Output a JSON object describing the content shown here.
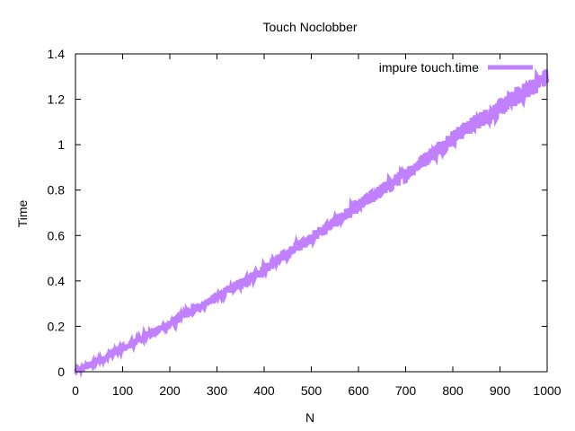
{
  "chart_data": {
    "type": "line",
    "title": "Touch Noclobber",
    "xlabel": "N",
    "ylabel": "Time",
    "xlim": [
      0,
      1000
    ],
    "ylim": [
      0,
      1.4
    ],
    "x_ticks": [
      0,
      100,
      200,
      300,
      400,
      500,
      600,
      700,
      800,
      900,
      1000
    ],
    "y_ticks": [
      0,
      0.2,
      0.4,
      0.6,
      0.8,
      1,
      1.2,
      1.4
    ],
    "x_tick_labels": [
      "0",
      "100",
      "200",
      "300",
      "400",
      "500",
      "600",
      "700",
      "800",
      "900",
      "1000"
    ],
    "y_tick_labels": [
      "0",
      "0.2",
      "0.4",
      "0.6",
      "0.8",
      "1",
      "1.2",
      "1.4"
    ],
    "grid": false,
    "legend_position": "top-right",
    "series": [
      {
        "name": "impure touch.time",
        "color": "#c080ff",
        "x": [
          0,
          50,
          100,
          150,
          200,
          250,
          300,
          350,
          400,
          450,
          500,
          550,
          600,
          650,
          700,
          750,
          800,
          850,
          900,
          950,
          1000
        ],
        "y": [
          0.0,
          0.05,
          0.1,
          0.16,
          0.21,
          0.27,
          0.33,
          0.39,
          0.45,
          0.52,
          0.59,
          0.66,
          0.73,
          0.8,
          0.87,
          0.95,
          1.03,
          1.1,
          1.16,
          1.23,
          1.3
        ],
        "noise": 0.04
      }
    ]
  }
}
